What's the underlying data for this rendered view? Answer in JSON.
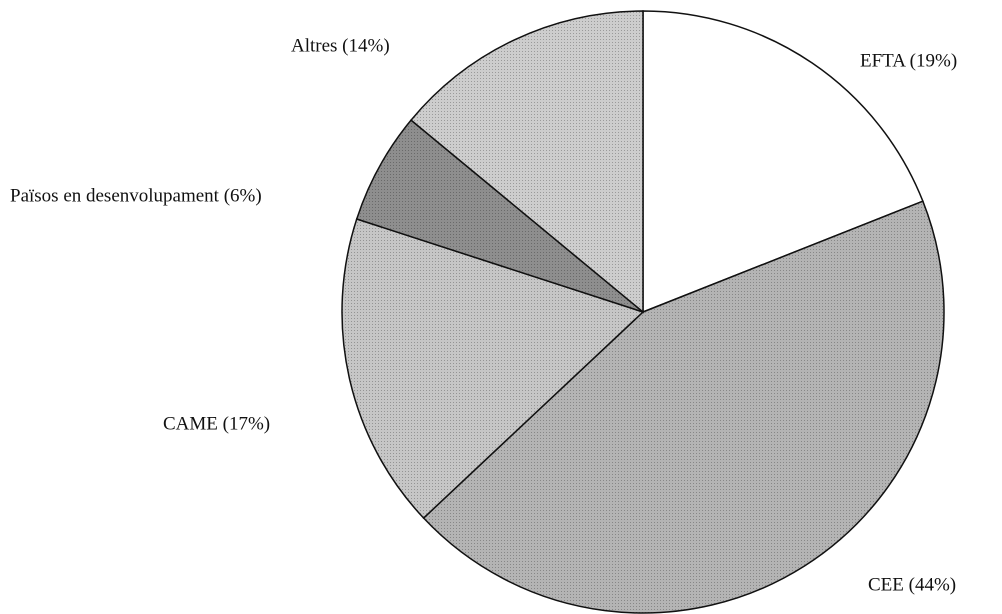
{
  "chart_data": {
    "type": "pie",
    "categories": [
      "EFTA (19%)",
      "CEE (44%)",
      "CAME (17%)",
      "Països en desenvolupament (6%)",
      "Altres (14%)"
    ],
    "values": [
      19,
      44,
      17,
      6,
      14
    ],
    "colors": [
      "#ffffff",
      "#b4b4b4",
      "#c6c6c6",
      "#8e8e8e",
      "#cdcdcd"
    ]
  }
}
